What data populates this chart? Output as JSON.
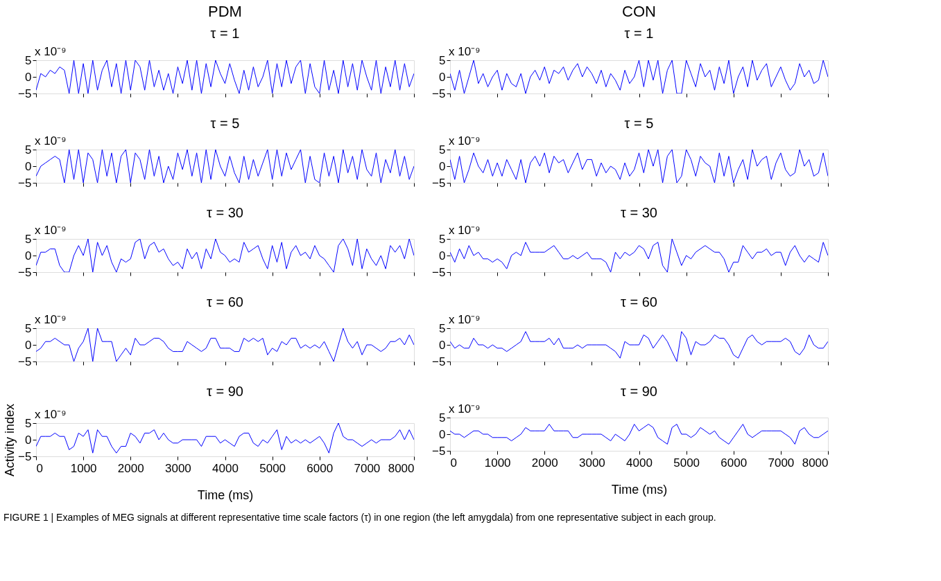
{
  "chart_data": [
    {
      "type": "line",
      "title": "PDM",
      "subtitle": "τ = 1",
      "annotations": [
        "x 10⁻⁹"
      ],
      "xlim": [
        0,
        8000
      ],
      "xticks": [
        0,
        1000,
        2000,
        3000,
        4000,
        5000,
        6000,
        7000,
        8000
      ],
      "ylim": [
        -5,
        5
      ],
      "yticks": [
        -5,
        0,
        5
      ],
      "tick_labels": "y",
      "grid": false,
      "x": [
        0,
        100,
        200,
        300,
        400,
        500,
        600,
        700,
        800,
        900,
        1000,
        1100,
        1200,
        1300,
        1400,
        1500,
        1600,
        1700,
        1800,
        1900,
        2000,
        2100,
        2200,
        2300,
        2400,
        2500,
        2600,
        2700,
        2800,
        2900,
        3000,
        3100,
        3200,
        3300,
        3400,
        3500,
        3600,
        3700,
        3800,
        3900,
        4000,
        4100,
        4200,
        4300,
        4400,
        4500,
        4600,
        4700,
        4800,
        4900,
        5000,
        5100,
        5200,
        5300,
        5400,
        5500,
        5600,
        5700,
        5800,
        5900,
        6000,
        6100,
        6200,
        6300,
        6400,
        6500,
        6600,
        6700,
        6800,
        6900,
        7000,
        7100,
        7200,
        7300,
        7400,
        7500,
        7600,
        7700,
        7800,
        7900,
        8000
      ],
      "series": [
        {
          "color": "#0000ff",
          "values": [
            -4,
            1,
            0,
            2,
            1,
            3,
            2,
            -5,
            5,
            -5,
            4,
            -5,
            5,
            -4,
            2,
            5,
            -3,
            4,
            -5,
            5,
            -4,
            5,
            3,
            -4,
            5,
            -3,
            2,
            -4,
            1,
            -5,
            3,
            -2,
            5,
            -4,
            5,
            -5,
            4,
            -3,
            5,
            1,
            -2,
            4,
            -1,
            -5,
            2,
            -4,
            3,
            -3,
            0,
            5,
            -5,
            4,
            -3,
            5,
            -2,
            3,
            5,
            -5,
            4,
            -3,
            -5,
            5,
            -4,
            2,
            -5,
            5,
            -3,
            4,
            -4,
            5,
            0,
            -4,
            5,
            -5,
            3,
            -3,
            5,
            -4,
            4,
            -3,
            1
          ]
        }
      ]
    },
    {
      "type": "line",
      "title": "CON",
      "subtitle": "τ = 1",
      "annotations": [
        "x 10⁻⁹"
      ],
      "xlim": [
        0,
        8000
      ],
      "xticks": [
        0,
        1000,
        2000,
        3000,
        4000,
        5000,
        6000,
        7000,
        8000
      ],
      "ylim": [
        -5,
        5
      ],
      "yticks": [
        -5,
        0,
        5
      ],
      "tick_labels": "y",
      "grid": false,
      "x": [
        0,
        100,
        200,
        300,
        400,
        500,
        600,
        700,
        800,
        900,
        1000,
        1100,
        1200,
        1300,
        1400,
        1500,
        1600,
        1700,
        1800,
        1900,
        2000,
        2100,
        2200,
        2300,
        2400,
        2500,
        2600,
        2700,
        2800,
        2900,
        3000,
        3100,
        3200,
        3300,
        3400,
        3500,
        3600,
        3700,
        3800,
        3900,
        4000,
        4100,
        4200,
        4300,
        4400,
        4500,
        4600,
        4700,
        4800,
        4900,
        5000,
        5100,
        5200,
        5300,
        5400,
        5500,
        5600,
        5700,
        5800,
        5900,
        6000,
        6100,
        6200,
        6300,
        6400,
        6500,
        6600,
        6700,
        6800,
        6900,
        7000,
        7100,
        7200,
        7300,
        7400,
        7500,
        7600,
        7700,
        7800,
        7900,
        8000
      ],
      "series": [
        {
          "color": "#0000ff",
          "values": [
            1,
            -4,
            2,
            -5,
            0,
            5,
            -2,
            1,
            -3,
            0,
            2,
            -4,
            1,
            -2,
            -3,
            1,
            -5,
            0,
            2,
            -1,
            3,
            -2,
            2,
            1,
            3,
            -1,
            2,
            4,
            0,
            3,
            1,
            -2,
            2,
            -3,
            1,
            -1,
            -4,
            2,
            -2,
            0,
            5,
            -3,
            5,
            -1,
            5,
            -5,
            2,
            5,
            -5,
            -5,
            5,
            1,
            -3,
            4,
            0,
            2,
            -4,
            3,
            -2,
            5,
            -5,
            0,
            3,
            -3,
            5,
            -1,
            2,
            4,
            -3,
            0,
            3,
            -1,
            -4,
            -2,
            4,
            0,
            2,
            -2,
            -1,
            5,
            0
          ]
        }
      ]
    },
    {
      "type": "line",
      "title": "τ = 5",
      "annotations": [
        "x 10⁻⁹"
      ],
      "xlim": [
        0,
        8000
      ],
      "xticks": [
        0,
        1000,
        2000,
        3000,
        4000,
        5000,
        6000,
        7000,
        8000
      ],
      "ylim": [
        -5,
        5
      ],
      "yticks": [
        -5,
        0,
        5
      ],
      "tick_labels": "y",
      "grid": false,
      "x": [
        0,
        100,
        200,
        300,
        400,
        500,
        600,
        700,
        800,
        900,
        1000,
        1100,
        1200,
        1300,
        1400,
        1500,
        1600,
        1700,
        1800,
        1900,
        2000,
        2100,
        2200,
        2300,
        2400,
        2500,
        2600,
        2700,
        2800,
        2900,
        3000,
        3100,
        3200,
        3300,
        3400,
        3500,
        3600,
        3700,
        3800,
        3900,
        4000,
        4100,
        4200,
        4300,
        4400,
        4500,
        4600,
        4700,
        4800,
        4900,
        5000,
        5100,
        5200,
        5300,
        5400,
        5500,
        5600,
        5700,
        5800,
        5900,
        6000,
        6100,
        6200,
        6300,
        6400,
        6500,
        6600,
        6700,
        6800,
        6900,
        7000,
        7100,
        7200,
        7300,
        7400,
        7500,
        7600,
        7700,
        7800,
        7900,
        8000
      ],
      "series": [
        {
          "color": "#0000ff",
          "values": [
            -3,
            0,
            1,
            2,
            3,
            2,
            -5,
            5,
            -4,
            5,
            -5,
            4,
            2,
            -5,
            5,
            -3,
            4,
            -5,
            3,
            5,
            -5,
            4,
            2,
            -4,
            5,
            -3,
            3,
            -5,
            0,
            -4,
            4,
            -1,
            5,
            -3,
            4,
            -5,
            5,
            -4,
            5,
            0,
            -3,
            3,
            -2,
            -5,
            3,
            -4,
            2,
            -3,
            1,
            5,
            -4,
            5,
            -3,
            4,
            -1,
            2,
            5,
            -5,
            3,
            -4,
            -5,
            4,
            -3,
            3,
            -5,
            5,
            -2,
            3,
            -4,
            5,
            -1,
            -3,
            4,
            -5,
            2,
            -2,
            5,
            -3,
            3,
            -4,
            0
          ]
        }
      ]
    },
    {
      "type": "line",
      "title": "τ = 5",
      "annotations": [
        "x 10⁻⁹"
      ],
      "xlim": [
        0,
        8000
      ],
      "xticks": [
        0,
        1000,
        2000,
        3000,
        4000,
        5000,
        6000,
        7000,
        8000
      ],
      "ylim": [
        -5,
        5
      ],
      "yticks": [
        -5,
        0,
        5
      ],
      "tick_labels": "y",
      "grid": false,
      "x": [
        0,
        100,
        200,
        300,
        400,
        500,
        600,
        700,
        800,
        900,
        1000,
        1100,
        1200,
        1300,
        1400,
        1500,
        1600,
        1700,
        1800,
        1900,
        2000,
        2100,
        2200,
        2300,
        2400,
        2500,
        2600,
        2700,
        2800,
        2900,
        3000,
        3100,
        3200,
        3300,
        3400,
        3500,
        3600,
        3700,
        3800,
        3900,
        4000,
        4100,
        4200,
        4300,
        4400,
        4500,
        4600,
        4700,
        4800,
        4900,
        5000,
        5100,
        5200,
        5300,
        5400,
        5500,
        5600,
        5700,
        5800,
        5900,
        6000,
        6100,
        6200,
        6300,
        6400,
        6500,
        6600,
        6700,
        6800,
        6900,
        7000,
        7100,
        7200,
        7300,
        7400,
        7500,
        7600,
        7700,
        7800,
        7900,
        8000
      ],
      "series": [
        {
          "color": "#0000ff",
          "values": [
            2,
            -4,
            3,
            -5,
            -1,
            4,
            0,
            -2,
            2,
            -3,
            1,
            -3,
            2,
            -1,
            -4,
            2,
            -5,
            1,
            3,
            0,
            4,
            -2,
            3,
            1,
            2,
            -2,
            1,
            4,
            -1,
            2,
            2,
            -3,
            1,
            -2,
            0,
            -1,
            -4,
            1,
            -3,
            -1,
            4,
            -2,
            5,
            0,
            5,
            -5,
            3,
            5,
            -5,
            -3,
            5,
            2,
            -3,
            3,
            1,
            0,
            -5,
            4,
            -3,
            3,
            -5,
            -1,
            2,
            -4,
            5,
            0,
            2,
            3,
            -4,
            1,
            4,
            -1,
            -3,
            -2,
            5,
            0,
            2,
            -3,
            -2,
            4,
            -3
          ]
        }
      ]
    },
    {
      "type": "line",
      "title": "τ = 30",
      "annotations": [
        "x 10⁻⁹"
      ],
      "xlim": [
        0,
        8000
      ],
      "xticks": [
        0,
        1000,
        2000,
        3000,
        4000,
        5000,
        6000,
        7000,
        8000
      ],
      "ylim": [
        -5,
        5
      ],
      "yticks": [
        -5,
        0,
        5
      ],
      "tick_labels": "y",
      "grid": false,
      "x": [
        0,
        100,
        200,
        300,
        400,
        500,
        600,
        700,
        800,
        900,
        1000,
        1100,
        1200,
        1300,
        1400,
        1500,
        1600,
        1700,
        1800,
        1900,
        2000,
        2100,
        2200,
        2300,
        2400,
        2500,
        2600,
        2700,
        2800,
        2900,
        3000,
        3100,
        3200,
        3300,
        3400,
        3500,
        3600,
        3700,
        3800,
        3900,
        4000,
        4100,
        4200,
        4300,
        4400,
        4500,
        4600,
        4700,
        4800,
        4900,
        5000,
        5100,
        5200,
        5300,
        5400,
        5500,
        5600,
        5700,
        5800,
        5900,
        6000,
        6100,
        6200,
        6300,
        6400,
        6500,
        6600,
        6700,
        6800,
        6900,
        7000,
        7100,
        7200,
        7300,
        7400,
        7500,
        7600,
        7700,
        7800,
        7900,
        8000
      ],
      "series": [
        {
          "color": "#0000ff",
          "values": [
            -3,
            1,
            1,
            2,
            2,
            -3,
            -5,
            -5,
            0,
            3,
            0,
            5,
            -5,
            4,
            0,
            3,
            -2,
            -5,
            -1,
            -2,
            -1,
            4,
            5,
            -1,
            3,
            4,
            1,
            2,
            -1,
            -3,
            -2,
            -4,
            2,
            -1,
            1,
            -4,
            2,
            -1,
            5,
            1,
            0,
            -2,
            -1,
            -2,
            4,
            1,
            2,
            3,
            -1,
            -4,
            3,
            -2,
            4,
            -4,
            1,
            3,
            0,
            1,
            -1,
            3,
            0,
            -1,
            -3,
            -5,
            3,
            5,
            2,
            -3,
            5,
            -4,
            2,
            -1,
            -3,
            0,
            -4,
            3,
            1,
            3,
            -1,
            5,
            0
          ]
        }
      ]
    },
    {
      "type": "line",
      "title": "τ = 30",
      "annotations": [
        "x 10⁻⁹"
      ],
      "xlim": [
        0,
        8000
      ],
      "xticks": [
        0,
        1000,
        2000,
        3000,
        4000,
        5000,
        6000,
        7000,
        8000
      ],
      "ylim": [
        -5,
        5
      ],
      "yticks": [
        -5,
        0,
        5
      ],
      "tick_labels": "y",
      "grid": false,
      "x": [
        0,
        100,
        200,
        300,
        400,
        500,
        600,
        700,
        800,
        900,
        1000,
        1100,
        1200,
        1300,
        1400,
        1500,
        1600,
        1700,
        1800,
        1900,
        2000,
        2100,
        2200,
        2300,
        2400,
        2500,
        2600,
        2700,
        2800,
        2900,
        3000,
        3100,
        3200,
        3300,
        3400,
        3500,
        3600,
        3700,
        3800,
        3900,
        4000,
        4100,
        4200,
        4300,
        4400,
        4500,
        4600,
        4700,
        4800,
        4900,
        5000,
        5100,
        5200,
        5300,
        5400,
        5500,
        5600,
        5700,
        5800,
        5900,
        6000,
        6100,
        6200,
        6300,
        6400,
        6500,
        6600,
        6700,
        6800,
        6900,
        7000,
        7100,
        7200,
        7300,
        7400,
        7500,
        7600,
        7700,
        7800,
        7900,
        8000
      ],
      "series": [
        {
          "color": "#0000ff",
          "values": [
            1,
            -2,
            2,
            -1,
            3,
            0,
            1,
            -1,
            -1,
            -2,
            -1,
            -2,
            -4,
            0,
            1,
            0,
            4,
            1,
            1,
            1,
            1,
            2,
            3,
            1,
            -1,
            -1,
            0,
            -1,
            0,
            1,
            -1,
            -1,
            -1,
            -2,
            -5,
            1,
            -1,
            1,
            0,
            1,
            3,
            2,
            -1,
            3,
            4,
            -3,
            -5,
            5,
            1,
            -3,
            0,
            -1,
            1,
            2,
            3,
            2,
            1,
            1,
            -1,
            -5,
            -2,
            -2,
            3,
            1,
            -1,
            1,
            1,
            2,
            0,
            1,
            1,
            -3,
            1,
            3,
            0,
            -2,
            0,
            -1,
            -2,
            4,
            0
          ]
        }
      ]
    },
    {
      "type": "line",
      "title": "τ = 60",
      "annotations": [
        "x 10⁻⁹"
      ],
      "xlim": [
        0,
        8000
      ],
      "xticks": [
        0,
        1000,
        2000,
        3000,
        4000,
        5000,
        6000,
        7000,
        8000
      ],
      "ylim": [
        -5,
        5
      ],
      "yticks": [
        -5,
        0,
        5
      ],
      "tick_labels": "y",
      "grid": false,
      "x": [
        0,
        100,
        200,
        300,
        400,
        500,
        600,
        700,
        800,
        900,
        1000,
        1100,
        1200,
        1300,
        1400,
        1500,
        1600,
        1700,
        1800,
        1900,
        2000,
        2100,
        2200,
        2300,
        2400,
        2500,
        2600,
        2700,
        2800,
        2900,
        3000,
        3100,
        3200,
        3300,
        3400,
        3500,
        3600,
        3700,
        3800,
        3900,
        4000,
        4100,
        4200,
        4300,
        4400,
        4500,
        4600,
        4700,
        4800,
        4900,
        5000,
        5100,
        5200,
        5300,
        5400,
        5500,
        5600,
        5700,
        5800,
        5900,
        6000,
        6100,
        6200,
        6300,
        6400,
        6500,
        6600,
        6700,
        6800,
        6900,
        7000,
        7100,
        7200,
        7300,
        7400,
        7500,
        7600,
        7700,
        7800,
        7900,
        8000
      ],
      "series": [
        {
          "color": "#0000ff",
          "values": [
            -2,
            -1,
            1,
            1,
            2,
            1,
            0,
            0,
            -5,
            -1,
            1,
            5,
            -5,
            5,
            1,
            1,
            1,
            -5,
            -3,
            -1,
            -3,
            2,
            0,
            0,
            1,
            2,
            2,
            1,
            -1,
            -2,
            -2,
            -2,
            1,
            0,
            -1,
            -2,
            -1,
            2,
            2,
            -1,
            -1,
            -1,
            -2,
            -2,
            2,
            1,
            2,
            1,
            2,
            -3,
            -1,
            -2,
            1,
            0,
            2,
            2,
            -1,
            0,
            -1,
            0,
            -1,
            1,
            -2,
            -5,
            0,
            5,
            1,
            -1,
            1,
            -3,
            0,
            0,
            -1,
            -2,
            -1,
            1,
            1,
            2,
            0,
            3,
            0
          ]
        }
      ]
    },
    {
      "type": "line",
      "title": "τ = 60",
      "annotations": [
        "x 10⁻⁹"
      ],
      "xlim": [
        0,
        8000
      ],
      "xticks": [
        0,
        1000,
        2000,
        3000,
        4000,
        5000,
        6000,
        7000,
        8000
      ],
      "ylim": [
        -5,
        5
      ],
      "yticks": [
        -5,
        0,
        5
      ],
      "tick_labels": "y",
      "grid": false,
      "x": [
        0,
        100,
        200,
        300,
        400,
        500,
        600,
        700,
        800,
        900,
        1000,
        1100,
        1200,
        1300,
        1400,
        1500,
        1600,
        1700,
        1800,
        1900,
        2000,
        2100,
        2200,
        2300,
        2400,
        2500,
        2600,
        2700,
        2800,
        2900,
        3000,
        3100,
        3200,
        3300,
        3400,
        3500,
        3600,
        3700,
        3800,
        3900,
        4000,
        4100,
        4200,
        4300,
        4400,
        4500,
        4600,
        4700,
        4800,
        4900,
        5000,
        5100,
        5200,
        5300,
        5400,
        5500,
        5600,
        5700,
        5800,
        5900,
        6000,
        6100,
        6200,
        6300,
        6400,
        6500,
        6600,
        6700,
        6800,
        6900,
        7000,
        7100,
        7200,
        7300,
        7400,
        7500,
        7600,
        7700,
        7800,
        7900,
        8000
      ],
      "series": [
        {
          "color": "#0000ff",
          "values": [
            1,
            -1,
            0,
            -1,
            -1,
            2,
            0,
            0,
            -1,
            0,
            -1,
            -1,
            -2,
            -1,
            0,
            1,
            4,
            1,
            1,
            1,
            1,
            2,
            0,
            2,
            -1,
            -1,
            -1,
            0,
            -1,
            0,
            0,
            0,
            0,
            0,
            -1,
            -2,
            -4,
            1,
            0,
            0,
            0,
            3,
            2,
            -1,
            1,
            3,
            1,
            -2,
            -5,
            4,
            2,
            -3,
            1,
            0,
            0,
            1,
            3,
            2,
            2,
            0,
            -3,
            -4,
            -1,
            2,
            3,
            1,
            0,
            1,
            1,
            1,
            1,
            2,
            1,
            -2,
            -3,
            -1,
            3,
            0,
            -1,
            -1,
            1
          ]
        }
      ]
    },
    {
      "type": "line",
      "title": "τ = 90",
      "annotations": [
        "x 10⁻⁹"
      ],
      "xlabel": "Time (ms)",
      "ylabel": "Activity index",
      "xlim": [
        0,
        8000
      ],
      "xticks": [
        0,
        1000,
        2000,
        3000,
        4000,
        5000,
        6000,
        7000,
        8000
      ],
      "ylim": [
        -5,
        5
      ],
      "yticks": [
        -5,
        0,
        5
      ],
      "grid": false,
      "x": [
        0,
        100,
        200,
        300,
        400,
        500,
        600,
        700,
        800,
        900,
        1000,
        1100,
        1200,
        1300,
        1400,
        1500,
        1600,
        1700,
        1800,
        1900,
        2000,
        2100,
        2200,
        2300,
        2400,
        2500,
        2600,
        2700,
        2800,
        2900,
        3000,
        3100,
        3200,
        3300,
        3400,
        3500,
        3600,
        3700,
        3800,
        3900,
        4000,
        4100,
        4200,
        4300,
        4400,
        4500,
        4600,
        4700,
        4800,
        4900,
        5000,
        5100,
        5200,
        5300,
        5400,
        5500,
        5600,
        5700,
        5800,
        5900,
        6000,
        6100,
        6200,
        6300,
        6400,
        6500,
        6600,
        6700,
        6800,
        6900,
        7000,
        7100,
        7200,
        7300,
        7400,
        7500,
        7600,
        7700,
        7800,
        7900,
        8000
      ],
      "series": [
        {
          "color": "#0000ff",
          "values": [
            -2,
            1,
            1,
            1,
            2,
            1,
            1,
            -3,
            -2,
            2,
            1,
            3,
            -4,
            3,
            1,
            1,
            -2,
            -4,
            -2,
            -2,
            2,
            1,
            -1,
            2,
            2,
            3,
            0,
            2,
            0,
            -1,
            -1,
            0,
            0,
            0,
            0,
            -2,
            1,
            1,
            1,
            -1,
            0,
            -1,
            -2,
            1,
            2,
            2,
            -1,
            -2,
            0,
            -1,
            1,
            3,
            -3,
            1,
            -1,
            0,
            -1,
            0,
            -1,
            0,
            1,
            -1,
            -4,
            2,
            5,
            1,
            0,
            0,
            -1,
            -2,
            -1,
            0,
            -1,
            0,
            0,
            0,
            1,
            3,
            0,
            3,
            0
          ]
        }
      ]
    },
    {
      "type": "line",
      "title": "τ = 90",
      "annotations": [
        "x 10⁻⁹",
        "FIGURE 1 | Examples of MEG signals at different representative time scale factors (τ) in one region (the left amygdala) from one representative subject in each group."
      ],
      "xlabel": "Time (ms)",
      "xlim": [
        0,
        8000
      ],
      "xticks": [
        0,
        1000,
        2000,
        3000,
        4000,
        5000,
        6000,
        7000,
        8000
      ],
      "ylim": [
        -5,
        5
      ],
      "yticks": [
        -5,
        0,
        5
      ],
      "grid": false,
      "x": [
        0,
        100,
        200,
        300,
        400,
        500,
        600,
        700,
        800,
        900,
        1000,
        1100,
        1200,
        1300,
        1400,
        1500,
        1600,
        1700,
        1800,
        1900,
        2000,
        2100,
        2200,
        2300,
        2400,
        2500,
        2600,
        2700,
        2800,
        2900,
        3000,
        3100,
        3200,
        3300,
        3400,
        3500,
        3600,
        3700,
        3800,
        3900,
        4000,
        4100,
        4200,
        4300,
        4400,
        4500,
        4600,
        4700,
        4800,
        4900,
        5000,
        5100,
        5200,
        5300,
        5400,
        5500,
        5600,
        5700,
        5800,
        5900,
        6000,
        6100,
        6200,
        6300,
        6400,
        6500,
        6600,
        6700,
        6800,
        6900,
        7000,
        7100,
        7200,
        7300,
        7400,
        7500,
        7600,
        7700,
        7800,
        7900,
        8000
      ],
      "series": [
        {
          "color": "#0000ff",
          "values": [
            1,
            0,
            0,
            -1,
            0,
            1,
            1,
            0,
            0,
            -1,
            -1,
            -1,
            -1,
            -2,
            -1,
            0,
            2,
            1,
            1,
            1,
            1,
            3,
            1,
            1,
            1,
            1,
            -1,
            -1,
            0,
            0,
            0,
            0,
            0,
            -1,
            -2,
            0,
            -1,
            -2,
            0,
            3,
            1,
            2,
            3,
            2,
            -1,
            -2,
            -3,
            2,
            3,
            0,
            0,
            -1,
            0,
            2,
            1,
            0,
            1,
            -1,
            -2,
            -3,
            -1,
            1,
            3,
            0,
            -1,
            0,
            1,
            1,
            1,
            1,
            1,
            0,
            -1,
            -3,
            1,
            2,
            0,
            -1,
            -1,
            0,
            1
          ]
        }
      ]
    }
  ]
}
